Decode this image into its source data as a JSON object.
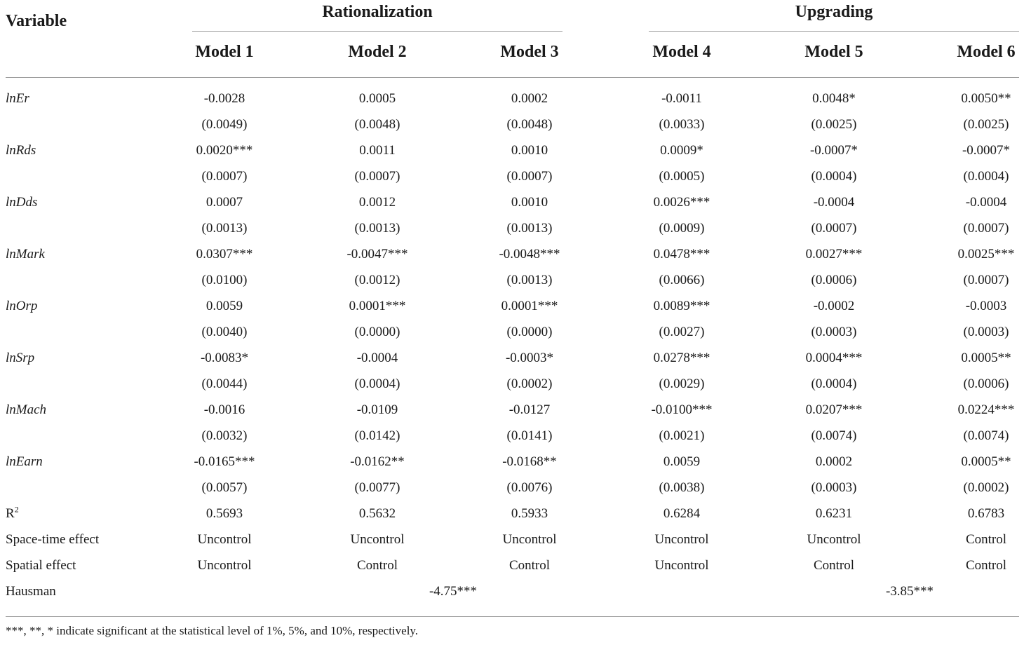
{
  "header": {
    "variable": "Variable",
    "groups": [
      "Rationalization",
      "Upgrading"
    ],
    "models": [
      "Model 1",
      "Model 2",
      "Model 3",
      "Model 4",
      "Model 5",
      "Model 6"
    ]
  },
  "rows": [
    {
      "label": "lnEr",
      "coef": [
        "-0.0028",
        "0.0005",
        "0.0002",
        "-0.0011",
        "0.0048*",
        "0.0050**"
      ],
      "se": [
        "(0.0049)",
        "(0.0048)",
        "(0.0048)",
        "(0.0033)",
        "(0.0025)",
        "(0.0025)"
      ]
    },
    {
      "label": "lnRds",
      "coef": [
        "0.0020***",
        "0.0011",
        "0.0010",
        "0.0009*",
        "-0.0007*",
        "-0.0007*"
      ],
      "se": [
        "(0.0007)",
        "(0.0007)",
        "(0.0007)",
        "(0.0005)",
        "(0.0004)",
        "(0.0004)"
      ]
    },
    {
      "label": "lnDds",
      "coef": [
        "0.0007",
        "0.0012",
        "0.0010",
        "0.0026***",
        "-0.0004",
        "-0.0004"
      ],
      "se": [
        "(0.0013)",
        "(0.0013)",
        "(0.0013)",
        "(0.0009)",
        "(0.0007)",
        "(0.0007)"
      ]
    },
    {
      "label": "lnMark",
      "coef": [
        "0.0307***",
        "-0.0047***",
        "-0.0048***",
        "0.0478***",
        "0.0027***",
        "0.0025***"
      ],
      "se": [
        "(0.0100)",
        "(0.0012)",
        "(0.0013)",
        "(0.0066)",
        "(0.0006)",
        "(0.0007)"
      ]
    },
    {
      "label": "lnOrp",
      "coef": [
        "0.0059",
        "0.0001***",
        "0.0001***",
        "0.0089***",
        "-0.0002",
        "-0.0003"
      ],
      "se": [
        "(0.0040)",
        "(0.0000)",
        "(0.0000)",
        "(0.0027)",
        "(0.0003)",
        "(0.0003)"
      ]
    },
    {
      "label": "lnSrp",
      "coef": [
        "-0.0083*",
        "-0.0004",
        "-0.0003*",
        "0.0278***",
        "0.0004***",
        "0.0005**"
      ],
      "se": [
        "(0.0044)",
        "(0.0004)",
        "(0.0002)",
        "(0.0029)",
        "(0.0004)",
        "(0.0006)"
      ]
    },
    {
      "label": "lnMach",
      "coef": [
        "-0.0016",
        "-0.0109",
        "-0.0127",
        "-0.0100***",
        "0.0207***",
        "0.0224***"
      ],
      "se": [
        "(0.0032)",
        "(0.0142)",
        "(0.0141)",
        "(0.0021)",
        "(0.0074)",
        "(0.0074)"
      ]
    },
    {
      "label": "lnEarn",
      "coef": [
        "-0.0165***",
        "-0.0162**",
        "-0.0168**",
        "0.0059",
        "0.0002",
        "0.0005**"
      ],
      "se": [
        "(0.0057)",
        "(0.0077)",
        "(0.0076)",
        "(0.0038)",
        "(0.0003)",
        "(0.0002)"
      ]
    }
  ],
  "stats": {
    "r2": {
      "label": "R",
      "sup": "2",
      "values": [
        "0.5693",
        "0.5632",
        "0.5933",
        "0.6284",
        "0.6231",
        "0.6783"
      ]
    },
    "space_time": {
      "label": "Space-time effect",
      "values": [
        "Uncontrol",
        "Uncontrol",
        "Uncontrol",
        "Uncontrol",
        "Uncontrol",
        "Control"
      ]
    },
    "spatial": {
      "label": "Spatial effect",
      "values": [
        "Uncontrol",
        "Control",
        "Control",
        "Uncontrol",
        "Control",
        "Control"
      ]
    },
    "hausman": {
      "label": "Hausman",
      "values": [
        "-4.75***",
        "-3.85***"
      ]
    }
  },
  "footnote": "***, **, * indicate significant at the statistical level of 1%, 5%, and 10%, respectively."
}
